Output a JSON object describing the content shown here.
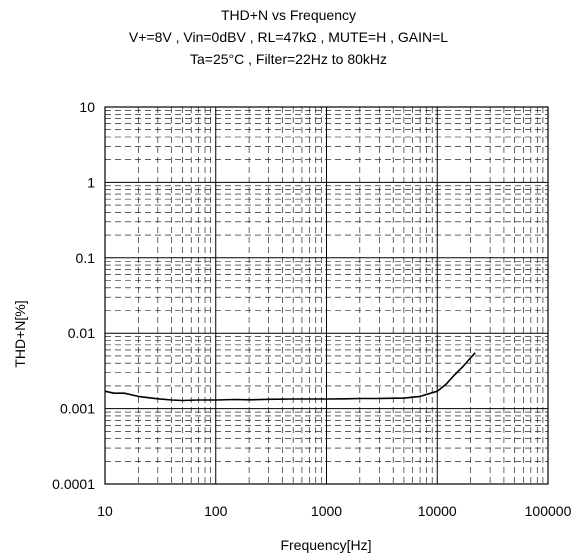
{
  "chart_data": {
    "type": "line",
    "title": "THD+N vs Frequency",
    "subtitle_lines": [
      "V+=8V , Vin=0dBV , RL=47kΩ , MUTE=H , GAIN=L",
      "Ta=25°C , Filter=22Hz to 80kHz"
    ],
    "xlabel": "Frequency[Hz]",
    "ylabel": "THD+N[%]",
    "x_scale": "log",
    "y_scale": "log",
    "xlim": [
      10,
      100000
    ],
    "ylim": [
      0.0001,
      10
    ],
    "x_ticks": [
      "10",
      "100",
      "1000",
      "10000",
      "100000"
    ],
    "y_ticks": [
      "0.0001",
      "0.001",
      "0.01",
      "0.1",
      "1",
      "10"
    ],
    "grid": true,
    "series": [
      {
        "x": [
          10,
          12,
          15,
          20,
          30,
          40,
          50,
          70,
          100,
          150,
          200,
          300,
          500,
          700,
          1000,
          1500,
          2000,
          3000,
          5000,
          7000,
          10000,
          12000,
          14000,
          17000,
          20000,
          22000
        ],
        "y": [
          0.0017,
          0.0016,
          0.0016,
          0.00145,
          0.00135,
          0.0013,
          0.00128,
          0.0013,
          0.0013,
          0.00132,
          0.00131,
          0.00133,
          0.00134,
          0.00134,
          0.00134,
          0.00135,
          0.00136,
          0.00136,
          0.00138,
          0.00145,
          0.0017,
          0.0021,
          0.0027,
          0.0036,
          0.0047,
          0.0055
        ],
        "color": "#000000"
      }
    ]
  }
}
